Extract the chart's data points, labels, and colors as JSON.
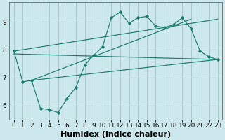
{
  "xlabel": "Humidex (Indice chaleur)",
  "bg_color": "#cde8ec",
  "grid_color": "#aacccc",
  "line_color": "#1a7a6e",
  "xlim": [
    -0.5,
    23.5
  ],
  "ylim": [
    5.5,
    9.7
  ],
  "xticks": [
    0,
    1,
    2,
    3,
    4,
    5,
    6,
    7,
    8,
    9,
    10,
    11,
    12,
    13,
    14,
    15,
    16,
    17,
    18,
    19,
    20,
    21,
    22,
    23
  ],
  "yticks": [
    6,
    7,
    8,
    9
  ],
  "main_line_x": [
    0,
    1,
    2,
    3,
    4,
    5,
    6,
    7,
    8,
    9,
    10,
    11,
    12,
    13,
    14,
    15,
    16,
    17,
    18,
    19,
    20,
    21,
    22,
    23
  ],
  "main_line_y": [
    7.95,
    6.85,
    6.9,
    5.9,
    5.85,
    5.75,
    6.25,
    6.65,
    7.45,
    7.8,
    8.1,
    9.15,
    9.35,
    8.95,
    9.15,
    9.2,
    8.85,
    8.8,
    8.9,
    9.15,
    8.75,
    7.95,
    7.75,
    7.65
  ],
  "line1_x": [
    0,
    23
  ],
  "line1_y": [
    7.95,
    9.1
  ],
  "line2_x": [
    2,
    20
  ],
  "line2_y": [
    6.9,
    9.1
  ],
  "line3_x": [
    2,
    23
  ],
  "line3_y": [
    6.9,
    7.65
  ],
  "line4_x": [
    0,
    23
  ],
  "line4_y": [
    7.85,
    7.65
  ],
  "font_size_xlabel": 8,
  "tick_fontsize": 6.5
}
